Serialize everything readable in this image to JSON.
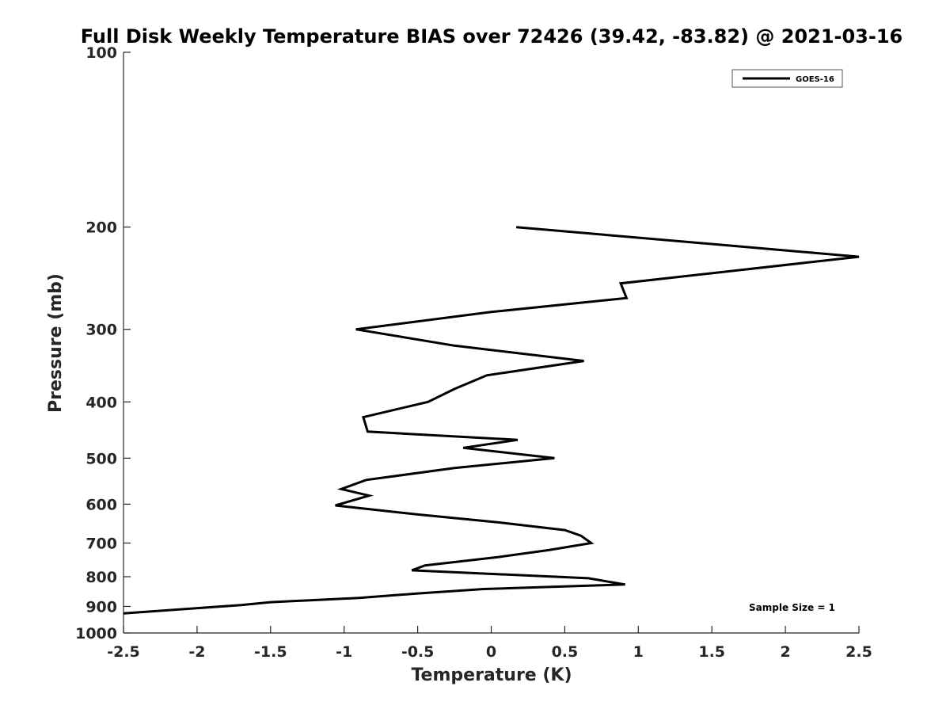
{
  "chart_data": {
    "type": "line",
    "title": "Full Disk Weekly Temperature BIAS over 72426 (39.42, -83.82) @ 2021-03-16",
    "xlabel": "Temperature (K)",
    "ylabel": "Pressure (mb)",
    "xlim": [
      -2.5,
      2.5
    ],
    "ylim": [
      100,
      1000
    ],
    "y_scale": "log",
    "y_reversed": true,
    "x_ticks": [
      "-2.5",
      "-2",
      "-1.5",
      "-1",
      "-0.5",
      "0",
      "0.5",
      "1",
      "1.5",
      "2",
      "2.5"
    ],
    "y_ticks": [
      "100",
      "200",
      "300",
      "400",
      "500",
      "600",
      "700",
      "800",
      "900",
      "1000"
    ],
    "grid": false,
    "legend_position": "top-right",
    "annotation": "Sample Size = 1",
    "series": [
      {
        "name": "GOES-16",
        "color": "#000000",
        "points": [
          {
            "t": 0.17,
            "p": 200
          },
          {
            "t": 2.5,
            "p": 225
          },
          {
            "t": 0.88,
            "p": 250
          },
          {
            "t": 0.92,
            "p": 265
          },
          {
            "t": 0.0,
            "p": 280
          },
          {
            "t": -0.92,
            "p": 300
          },
          {
            "t": -0.25,
            "p": 320
          },
          {
            "t": 0.63,
            "p": 340
          },
          {
            "t": -0.03,
            "p": 360
          },
          {
            "t": -0.25,
            "p": 380
          },
          {
            "t": -0.43,
            "p": 400
          },
          {
            "t": -0.87,
            "p": 425
          },
          {
            "t": -0.84,
            "p": 450
          },
          {
            "t": 0.18,
            "p": 465
          },
          {
            "t": -0.19,
            "p": 480
          },
          {
            "t": 0.43,
            "p": 500
          },
          {
            "t": -0.25,
            "p": 520
          },
          {
            "t": -0.85,
            "p": 545
          },
          {
            "t": -1.02,
            "p": 565
          },
          {
            "t": -0.83,
            "p": 580
          },
          {
            "t": -1.06,
            "p": 603
          },
          {
            "t": -0.5,
            "p": 625
          },
          {
            "t": 0.05,
            "p": 645
          },
          {
            "t": 0.5,
            "p": 665
          },
          {
            "t": 0.61,
            "p": 680
          },
          {
            "t": 0.68,
            "p": 700
          },
          {
            "t": 0.39,
            "p": 720
          },
          {
            "t": 0.05,
            "p": 740
          },
          {
            "t": -0.45,
            "p": 765
          },
          {
            "t": -0.54,
            "p": 780
          },
          {
            "t": 0.66,
            "p": 805
          },
          {
            "t": 0.91,
            "p": 825
          },
          {
            "t": -0.05,
            "p": 840
          },
          {
            "t": -0.5,
            "p": 855
          },
          {
            "t": -0.9,
            "p": 870
          },
          {
            "t": -1.5,
            "p": 885
          },
          {
            "t": -1.7,
            "p": 895
          },
          {
            "t": -2.1,
            "p": 910
          },
          {
            "t": -2.5,
            "p": 925
          }
        ]
      }
    ]
  }
}
